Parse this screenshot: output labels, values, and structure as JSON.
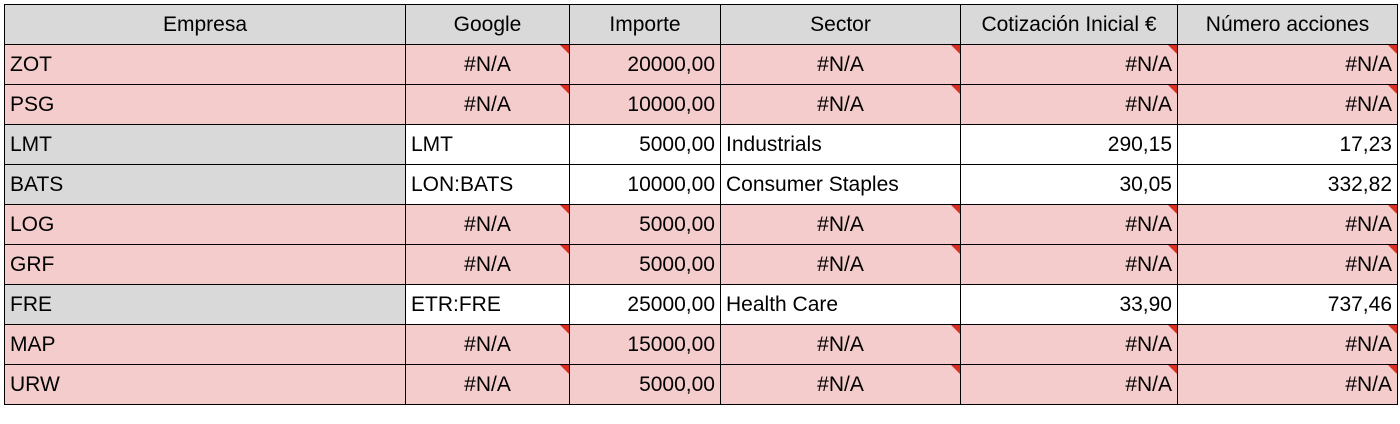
{
  "headers": [
    "Empresa",
    "Google",
    "Importe",
    "Sector",
    "Cotización Inicial €",
    "Número acciones"
  ],
  "rows": [
    {
      "empresa": "ZOT",
      "google": "#N/A",
      "importe": "20000,00",
      "sector": "#N/A",
      "cotizacion": "#N/A",
      "acciones": "#N/A",
      "error": true
    },
    {
      "empresa": "PSG",
      "google": "#N/A",
      "importe": "10000,00",
      "sector": "#N/A",
      "cotizacion": "#N/A",
      "acciones": "#N/A",
      "error": true
    },
    {
      "empresa": "LMT",
      "google": "LMT",
      "importe": "5000,00",
      "sector": "Industrials",
      "cotizacion": "290,15",
      "acciones": "17,23",
      "error": false
    },
    {
      "empresa": "BATS",
      "google": "LON:BATS",
      "importe": "10000,00",
      "sector": "Consumer Staples",
      "cotizacion": "30,05",
      "acciones": "332,82",
      "error": false
    },
    {
      "empresa": "LOG",
      "google": "#N/A",
      "importe": "5000,00",
      "sector": "#N/A",
      "cotizacion": "#N/A",
      "acciones": "#N/A",
      "error": true
    },
    {
      "empresa": "GRF",
      "google": "#N/A",
      "importe": "5000,00",
      "sector": "#N/A",
      "cotizacion": "#N/A",
      "acciones": "#N/A",
      "error": true
    },
    {
      "empresa": "FRE",
      "google": "ETR:FRE",
      "importe": "25000,00",
      "sector": "Health Care",
      "cotizacion": "33,90",
      "acciones": "737,46",
      "error": false
    },
    {
      "empresa": "MAP",
      "google": "#N/A",
      "importe": "15000,00",
      "sector": "#N/A",
      "cotizacion": "#N/A",
      "acciones": "#N/A",
      "error": true
    },
    {
      "empresa": "URW",
      "google": "#N/A",
      "importe": "5000,00",
      "sector": "#N/A",
      "cotizacion": "#N/A",
      "acciones": "#N/A",
      "error": true
    }
  ],
  "colors": {
    "error_fill": "#f4cccc",
    "header_fill": "#d9d9d9",
    "empresa_fill": "#d9d9d9",
    "note_marker": "#d93025"
  }
}
